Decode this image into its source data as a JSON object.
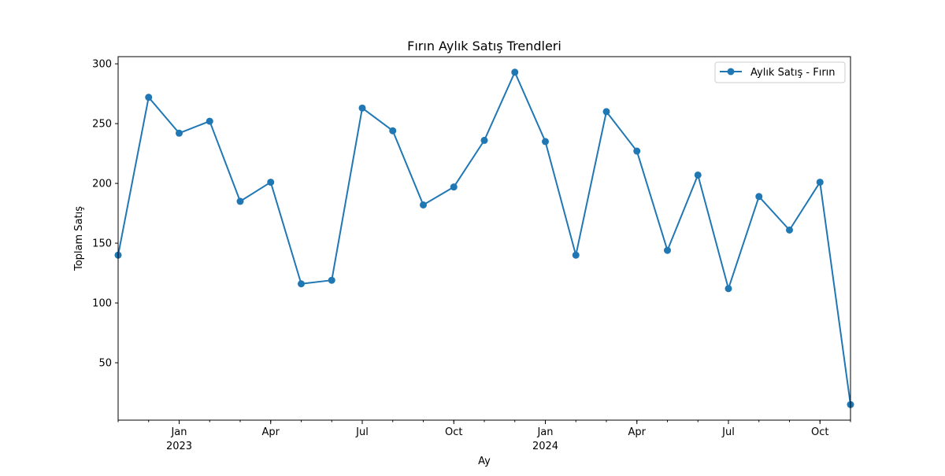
{
  "chart_data": {
    "type": "line",
    "title": "Fırın Aylık Satış Trendleri",
    "xlabel": "Ay",
    "ylabel": "Toplam Satış",
    "x": [
      "2022-11",
      "2022-12",
      "2023-01",
      "2023-02",
      "2023-03",
      "2023-04",
      "2023-05",
      "2023-06",
      "2023-07",
      "2023-08",
      "2023-09",
      "2023-10",
      "2023-11",
      "2023-12",
      "2024-01",
      "2024-02",
      "2024-03",
      "2024-04",
      "2024-05",
      "2024-06",
      "2024-07",
      "2024-08",
      "2024-09",
      "2024-10",
      "2024-11"
    ],
    "series": [
      {
        "name": "Aylık Satış - Fırın",
        "color": "#1f77b4",
        "values": [
          140,
          272,
          242,
          252,
          185,
          201,
          116,
          119,
          263,
          244,
          182,
          197,
          236,
          293,
          235,
          140,
          260,
          227,
          144,
          207,
          112,
          189,
          161,
          201,
          15
        ]
      }
    ],
    "xlim": [
      "2022-11",
      "2024-11"
    ],
    "ylim": [
      2,
      306
    ],
    "yticks": [
      50,
      100,
      150,
      200,
      250,
      300
    ],
    "xticks": [
      {
        "at": "2023-01",
        "label": "Jan",
        "sublabel": "2023"
      },
      {
        "at": "2023-04",
        "label": "Apr",
        "sublabel": ""
      },
      {
        "at": "2023-07",
        "label": "Jul",
        "sublabel": ""
      },
      {
        "at": "2023-10",
        "label": "Oct",
        "sublabel": ""
      },
      {
        "at": "2024-01",
        "label": "Jan",
        "sublabel": "2024"
      },
      {
        "at": "2024-04",
        "label": "Apr",
        "sublabel": ""
      },
      {
        "at": "2024-07",
        "label": "Jul",
        "sublabel": ""
      },
      {
        "at": "2024-10",
        "label": "Oct",
        "sublabel": ""
      }
    ],
    "grid": false,
    "legend_position": "top-right"
  }
}
